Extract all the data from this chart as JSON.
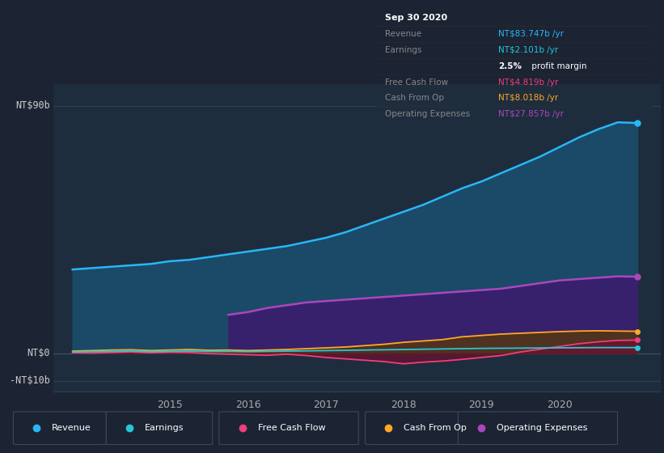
{
  "bg_color": "#1c2333",
  "plot_bg_color": "#1e2d3d",
  "grid_color": "#2a3f55",
  "ylim": [
    -14,
    98
  ],
  "xlim": [
    2013.5,
    2021.3
  ],
  "xtick_years": [
    2015,
    2016,
    2017,
    2018,
    2019,
    2020
  ],
  "legend": [
    {
      "label": "Revenue",
      "color": "#29b6f6"
    },
    {
      "label": "Earnings",
      "color": "#26c6da"
    },
    {
      "label": "Free Cash Flow",
      "color": "#ec407a"
    },
    {
      "label": "Cash From Op",
      "color": "#ffa726"
    },
    {
      "label": "Operating Expenses",
      "color": "#ab47bc"
    }
  ],
  "revenue_x": [
    2013.75,
    2014.0,
    2014.25,
    2014.5,
    2014.75,
    2015.0,
    2015.25,
    2015.5,
    2015.75,
    2016.0,
    2016.25,
    2016.5,
    2016.75,
    2017.0,
    2017.25,
    2017.5,
    2017.75,
    2018.0,
    2018.25,
    2018.5,
    2018.75,
    2019.0,
    2019.25,
    2019.5,
    2019.75,
    2020.0,
    2020.25,
    2020.5,
    2020.75,
    2021.0
  ],
  "revenue_y": [
    30.5,
    31.0,
    31.5,
    32.0,
    32.5,
    33.5,
    34.0,
    35.0,
    36.0,
    37.0,
    38.0,
    39.0,
    40.5,
    42.0,
    44.0,
    46.5,
    49.0,
    51.5,
    54.0,
    57.0,
    60.0,
    62.5,
    65.5,
    68.5,
    71.5,
    75.0,
    78.5,
    81.5,
    84.0,
    83.747
  ],
  "opex_x": [
    2015.75,
    2016.0,
    2016.25,
    2016.5,
    2016.75,
    2017.0,
    2017.25,
    2017.5,
    2017.75,
    2018.0,
    2018.25,
    2018.5,
    2018.75,
    2019.0,
    2019.25,
    2019.5,
    2019.75,
    2020.0,
    2020.25,
    2020.5,
    2020.75,
    2021.0
  ],
  "opex_y": [
    14.0,
    15.0,
    16.5,
    17.5,
    18.5,
    19.0,
    19.5,
    20.0,
    20.5,
    21.0,
    21.5,
    22.0,
    22.5,
    23.0,
    23.5,
    24.5,
    25.5,
    26.5,
    27.0,
    27.5,
    28.0,
    27.857
  ],
  "cop_x": [
    2013.75,
    2014.0,
    2014.25,
    2014.5,
    2014.75,
    2015.0,
    2015.25,
    2015.5,
    2015.75,
    2016.0,
    2016.25,
    2016.5,
    2016.75,
    2017.0,
    2017.25,
    2017.5,
    2017.75,
    2018.0,
    2018.25,
    2018.5,
    2018.75,
    2019.0,
    2019.25,
    2019.5,
    2019.75,
    2020.0,
    2020.25,
    2020.5,
    2020.75,
    2021.0
  ],
  "cop_y": [
    0.8,
    1.0,
    1.2,
    1.3,
    1.0,
    1.2,
    1.4,
    1.1,
    1.2,
    1.0,
    1.2,
    1.4,
    1.7,
    2.0,
    2.3,
    2.8,
    3.3,
    4.0,
    4.5,
    5.0,
    6.0,
    6.5,
    7.0,
    7.3,
    7.6,
    7.9,
    8.1,
    8.2,
    8.1,
    8.018
  ],
  "fcf_x": [
    2013.75,
    2014.0,
    2014.25,
    2014.5,
    2014.75,
    2015.0,
    2015.25,
    2015.5,
    2015.75,
    2016.0,
    2016.25,
    2016.5,
    2016.75,
    2017.0,
    2017.25,
    2017.5,
    2017.75,
    2018.0,
    2018.25,
    2018.5,
    2018.75,
    2019.0,
    2019.25,
    2019.5,
    2019.75,
    2020.0,
    2020.25,
    2020.5,
    2020.75,
    2021.0
  ],
  "fcf_y": [
    0.2,
    0.1,
    0.3,
    0.5,
    0.2,
    0.4,
    0.3,
    -0.1,
    -0.3,
    -0.5,
    -0.7,
    -0.3,
    -0.8,
    -1.5,
    -2.0,
    -2.5,
    -3.0,
    -3.8,
    -3.2,
    -2.8,
    -2.2,
    -1.5,
    -0.8,
    0.5,
    1.5,
    2.5,
    3.5,
    4.2,
    4.7,
    4.819
  ],
  "ear_x": [
    2013.75,
    2014.0,
    2014.25,
    2014.5,
    2014.75,
    2015.0,
    2015.25,
    2015.5,
    2015.75,
    2016.0,
    2016.25,
    2016.5,
    2016.75,
    2017.0,
    2017.25,
    2017.5,
    2017.75,
    2018.0,
    2018.25,
    2018.5,
    2018.75,
    2019.0,
    2019.25,
    2019.5,
    2019.75,
    2020.0,
    2020.25,
    2020.5,
    2020.75,
    2021.0
  ],
  "ear_y": [
    0.5,
    0.6,
    0.7,
    0.8,
    0.6,
    0.7,
    0.8,
    0.7,
    0.7,
    0.6,
    0.7,
    0.8,
    0.9,
    1.0,
    1.1,
    1.2,
    1.3,
    1.4,
    1.5,
    1.6,
    1.7,
    1.8,
    1.85,
    1.9,
    1.95,
    2.0,
    2.05,
    2.1,
    2.1,
    2.101
  ],
  "tooltip_lines": [
    {
      "label": "Sep 30 2020",
      "value": "",
      "label_color": "#ffffff",
      "value_color": "#ffffff",
      "is_title": true
    },
    {
      "label": "Revenue",
      "value": "NT$83.747b /yr",
      "label_color": "#888888",
      "value_color": "#29b6f6",
      "is_title": false
    },
    {
      "label": "Earnings",
      "value": "NT$2.101b /yr",
      "label_color": "#888888",
      "value_color": "#26c6da",
      "is_title": false
    },
    {
      "label": "",
      "value": "2.5% profit margin",
      "label_color": "#888888",
      "value_color": "#ffffff",
      "is_title": false,
      "bold_prefix": "2.5%"
    },
    {
      "label": "Free Cash Flow",
      "value": "NT$4.819b /yr",
      "label_color": "#888888",
      "value_color": "#ec407a",
      "is_title": false
    },
    {
      "label": "Cash From Op",
      "value": "NT$8.018b /yr",
      "label_color": "#888888",
      "value_color": "#ffa726",
      "is_title": false
    },
    {
      "label": "Operating Expenses",
      "value": "NT$27.857b /yr",
      "label_color": "#888888",
      "value_color": "#ab47bc",
      "is_title": false
    }
  ]
}
